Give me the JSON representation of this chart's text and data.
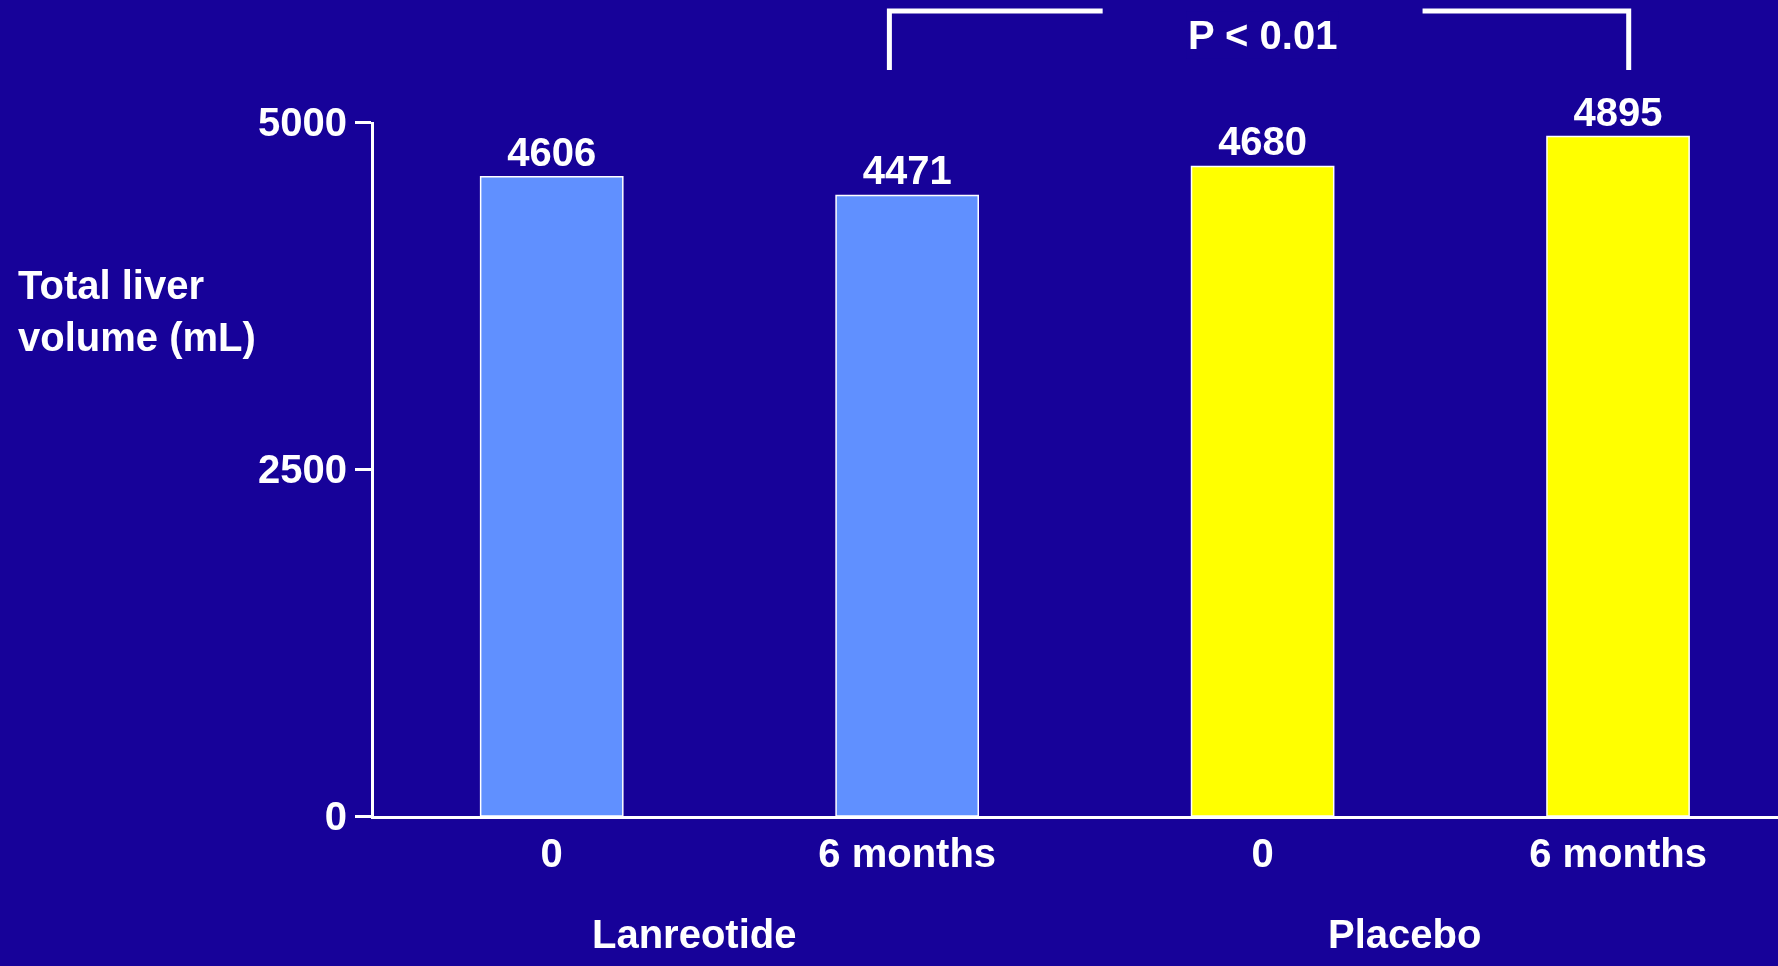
{
  "chart_data": {
    "type": "bar",
    "categories": [
      "0",
      "6 months",
      "0",
      "6 months"
    ],
    "values": [
      4606,
      4471,
      4680,
      4895
    ],
    "colors": [
      "#6090ff",
      "#6090ff",
      "#ffff00",
      "#ffff00"
    ],
    "ylabel": "Total liver\nvolume (mL)",
    "ylim": [
      0,
      5000
    ],
    "yticks": [
      0,
      2500,
      5000
    ],
    "data_labels": true,
    "grid": false,
    "legend": false,
    "annotations": [
      "P < 0.01",
      "Lanreotide",
      "Placebo"
    ]
  }
}
